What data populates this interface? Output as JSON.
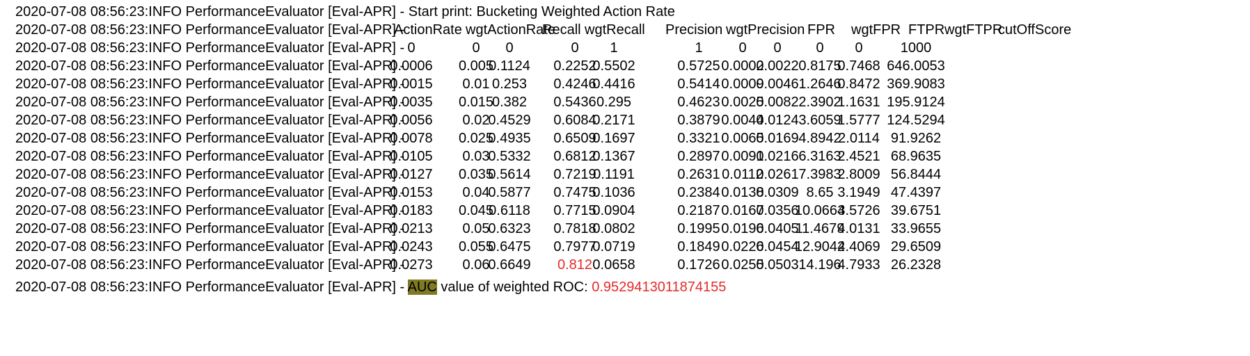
{
  "log_prefix": "2020-07-08 08:56:23:INFO PerformanceEvaluator [Eval-APR] -",
  "start_line_text": "Start print: Bucketing Weighted Action Rate",
  "columns": [
    "ActionRate",
    "wgtActionRate",
    "Recall",
    "wgtRecall",
    "Precision",
    "wgtPrecision",
    "FPR",
    "wgtFPR",
    "FTPR",
    "wgtFTPR",
    "cutOffScore"
  ],
  "rows": [
    [
      "0",
      "0",
      "0",
      "0",
      "1",
      "1",
      "0",
      "0",
      "0",
      "0",
      "1000"
    ],
    [
      "0.0006",
      "0.005",
      "0.1124",
      "0.2252",
      "0.5502",
      "0.5725",
      "0.0002",
      "0.0022",
      "0.8175",
      "0.7468",
      "646.0053"
    ],
    [
      "0.0015",
      "0.01",
      "0.253",
      "0.4246",
      "0.4416",
      "0.5414",
      "0.0009",
      "0.0046",
      "1.2646",
      "0.8472",
      "369.9083"
    ],
    [
      "0.0035",
      "0.015",
      "0.382",
      "0.5436",
      "0.295",
      "0.4623",
      "0.0025",
      "0.0082",
      "2.3902",
      "1.1631",
      "195.9124"
    ],
    [
      "0.0056",
      "0.02",
      "0.4529",
      "0.6084",
      "0.2171",
      "0.3879",
      "0.0044",
      "0.0124",
      "3.6059",
      "1.5777",
      "124.5294"
    ],
    [
      "0.0078",
      "0.025",
      "0.4935",
      "0.6509",
      "0.1697",
      "0.3321",
      "0.0065",
      "0.0169",
      "4.8942",
      "2.0114",
      "91.9262"
    ],
    [
      "0.0105",
      "0.03",
      "0.5332",
      "0.6812",
      "0.1367",
      "0.2897",
      "0.0091",
      "0.0216",
      "6.3163",
      "2.4521",
      "68.9635"
    ],
    [
      "0.0127",
      "0.035",
      "0.5614",
      "0.7219",
      "0.1191",
      "0.2631",
      "0.0112",
      "0.0261",
      "7.3983",
      "2.8009",
      "56.8444"
    ],
    [
      "0.0153",
      "0.04",
      "0.5877",
      "0.7475",
      "0.1036",
      "0.2384",
      "0.0138",
      "0.0309",
      "8.65",
      "3.1949",
      "47.4397"
    ],
    [
      "0.0183",
      "0.045",
      "0.6118",
      "0.7715",
      "0.0904",
      "0.2187",
      "0.0167",
      "0.0356",
      "10.0664",
      "3.5726",
      "39.6751"
    ],
    [
      "0.0213",
      "0.05",
      "0.6323",
      "0.7818",
      "0.0802",
      "0.1995",
      "0.0196",
      "0.0405",
      "11.4679",
      "4.0131",
      "33.9655"
    ],
    [
      "0.0243",
      "0.055",
      "0.6475",
      "0.7977",
      "0.0719",
      "0.1849",
      "0.0226",
      "0.0454",
      "12.9042",
      "4.4069",
      "29.6509"
    ],
    [
      "0.0273",
      "0.06",
      "0.6649",
      "0.812",
      "0.0658",
      "0.1726",
      "0.0255",
      "0.0503",
      "14.196",
      "4.7933",
      "26.2328"
    ]
  ],
  "highlighted_cell": {
    "row": 12,
    "col": 3,
    "color": "#e52a2a"
  },
  "auc_line": {
    "highlight_word": "AUC",
    "highlight_color": "#807a24",
    "text": "value of weighted ROC:",
    "value": "0.9529413011874155",
    "value_color": "#e52a2a"
  }
}
